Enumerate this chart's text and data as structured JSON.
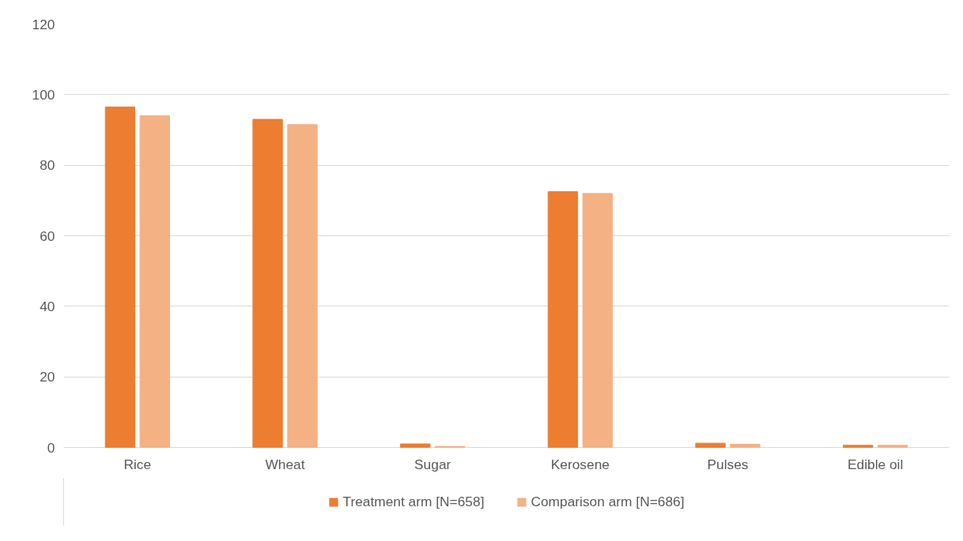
{
  "chart_data": {
    "type": "bar",
    "categories": [
      "Rice",
      "Wheat",
      "Sugar",
      "Kerosene",
      "Pulses",
      "Edible oil"
    ],
    "series": [
      {
        "name": "Treatment arm [N=658]",
        "color": "#ed7d31",
        "values": [
          96.5,
          93,
          1,
          72.5,
          1.2,
          0.6
        ]
      },
      {
        "name": "Comparison arm [N=686]",
        "color": "#f4b183",
        "values": [
          94,
          91.5,
          0.3,
          72,
          0.9,
          0.6
        ]
      }
    ],
    "ylim": [
      0,
      120
    ],
    "yticks": [
      0,
      20,
      40,
      60,
      80,
      100,
      120
    ],
    "grid": "y",
    "legend": "bottom"
  }
}
